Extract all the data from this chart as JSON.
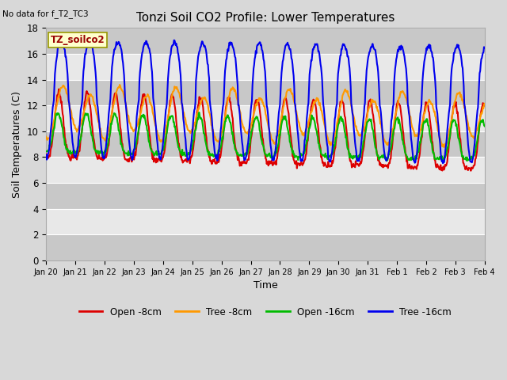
{
  "title": "Tonzi Soil CO2 Profile: Lower Temperatures",
  "no_data_text": "No data for f_T2_TC3",
  "xlabel": "Time",
  "ylabel": "Soil Temperatures (C)",
  "ylim": [
    0,
    18
  ],
  "yticks": [
    0,
    2,
    4,
    6,
    8,
    10,
    12,
    14,
    16,
    18
  ],
  "x_tick_labels": [
    "Jan 20",
    "Jan 21",
    "Jan 22",
    "Jan 23",
    "Jan 24",
    "Jan 25",
    "Jan 26",
    "Jan 27",
    "Jan 28",
    "Jan 29",
    "Jan 30",
    "Jan 31",
    "Feb 1",
    "Feb 2",
    "Feb 3",
    "Feb 4"
  ],
  "legend_entries": [
    "Open -8cm",
    "Tree -8cm",
    "Open -16cm",
    "Tree -16cm"
  ],
  "line_colors": [
    "#dd0000",
    "#ff9900",
    "#00bb00",
    "#0000ee"
  ],
  "annotation_text": "TZ_soilco2",
  "annotation_color": "#990000",
  "annotation_bg": "#ffffcc",
  "annotation_edge": "#999900",
  "fig_bg": "#d8d8d8",
  "plot_bg": "#d8d8d8",
  "band_light": "#e8e8e8",
  "band_dark": "#c8c8c8",
  "figsize": [
    6.4,
    4.8
  ],
  "dpi": 100,
  "days": 15.5,
  "n_points": 800
}
